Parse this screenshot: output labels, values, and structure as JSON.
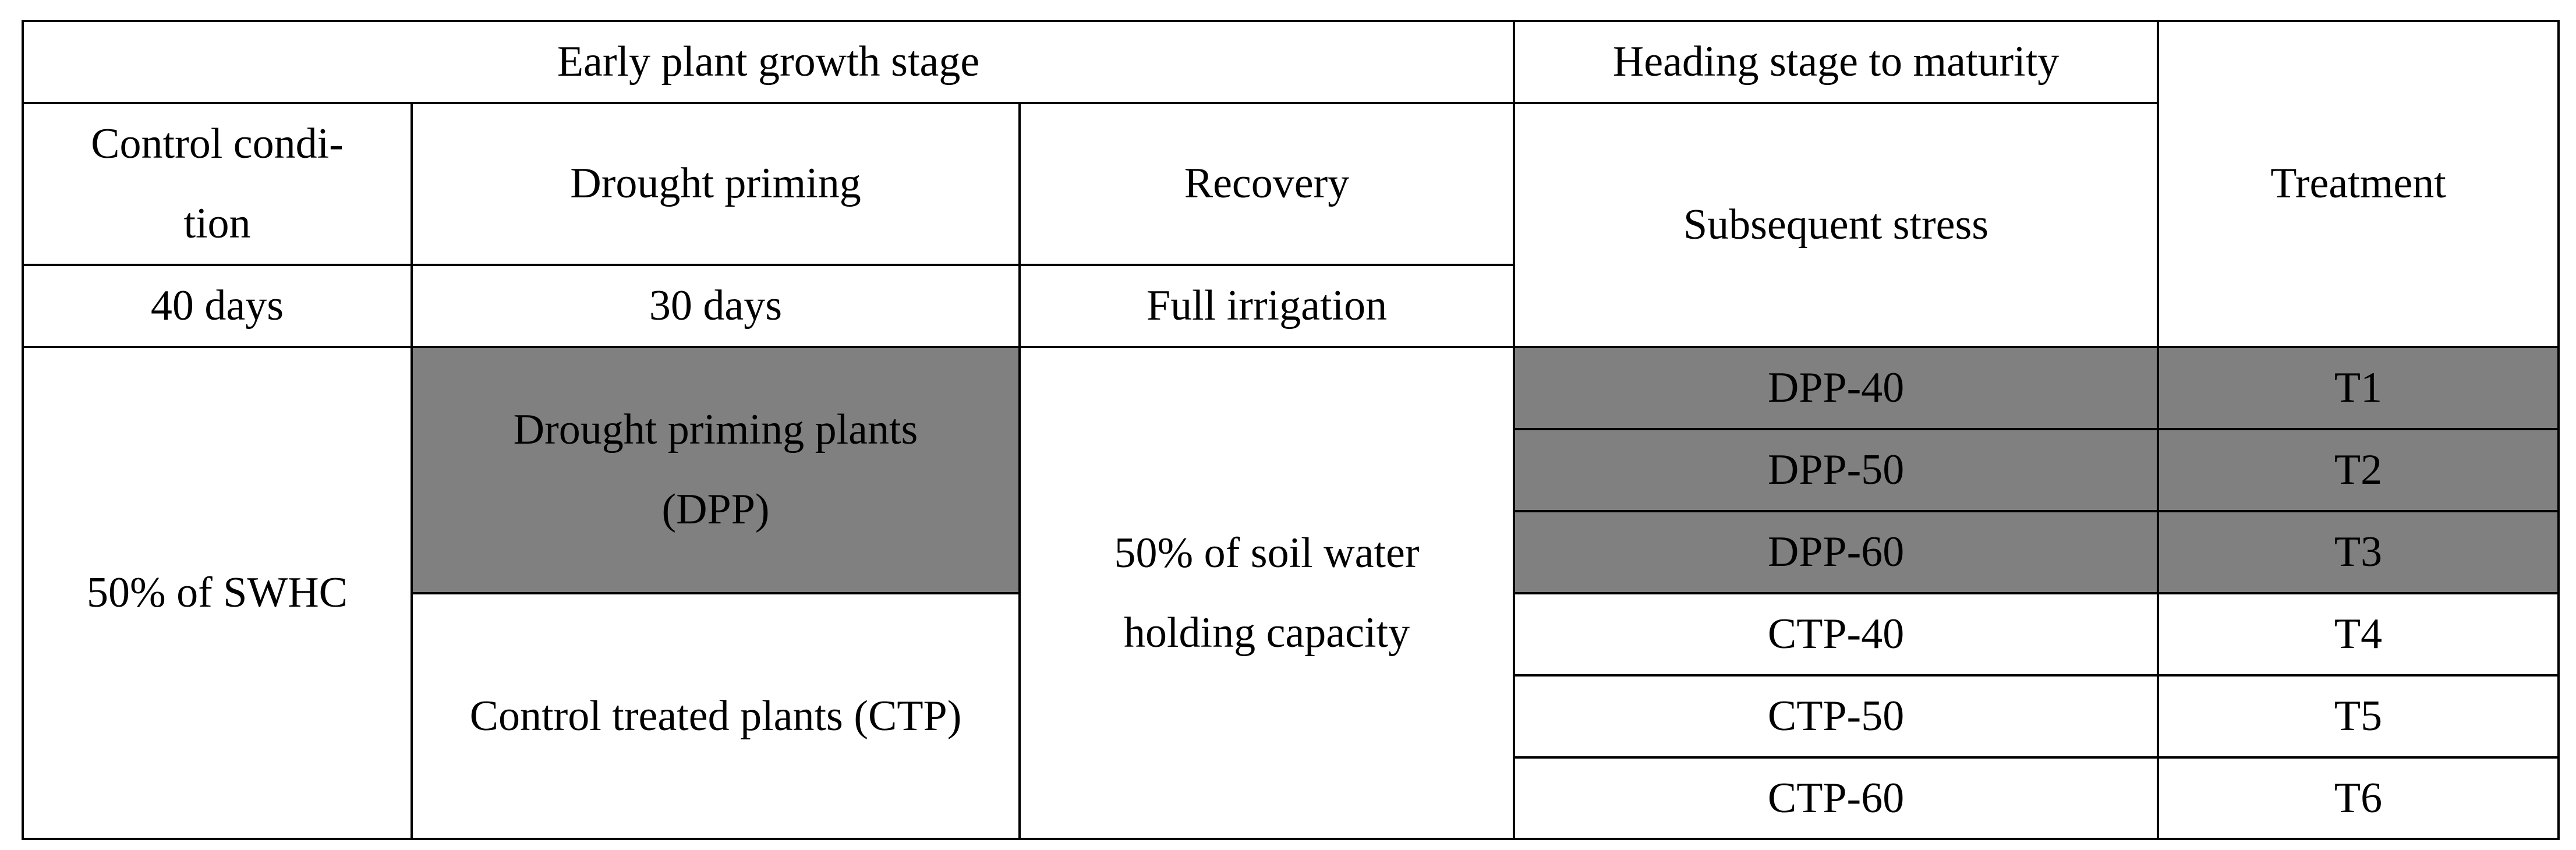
{
  "table": {
    "header": {
      "early_stage": "Early plant growth stage",
      "late_stage": "Heading stage to maturity",
      "columns": [
        "Control condi-tion",
        "Drought priming",
        "Recovery",
        "Subsequent stress",
        "Treatment"
      ],
      "durations": [
        "40 days",
        "30 days",
        "Full irrigation"
      ]
    },
    "body": {
      "control": "50% of SWHC",
      "groups": [
        "Drought priming plants (DPP)",
        "Control treated plants (CTP)"
      ],
      "recovery": "50% of soil water holding capacity",
      "rows": [
        [
          "DPP-40",
          "T1"
        ],
        [
          "DPP-50",
          "T2"
        ],
        [
          "DPP-60",
          "T3"
        ],
        [
          "CTP-40",
          "T4"
        ],
        [
          "CTP-50",
          "T5"
        ],
        [
          "CTP-60",
          "T6"
        ]
      ]
    }
  }
}
